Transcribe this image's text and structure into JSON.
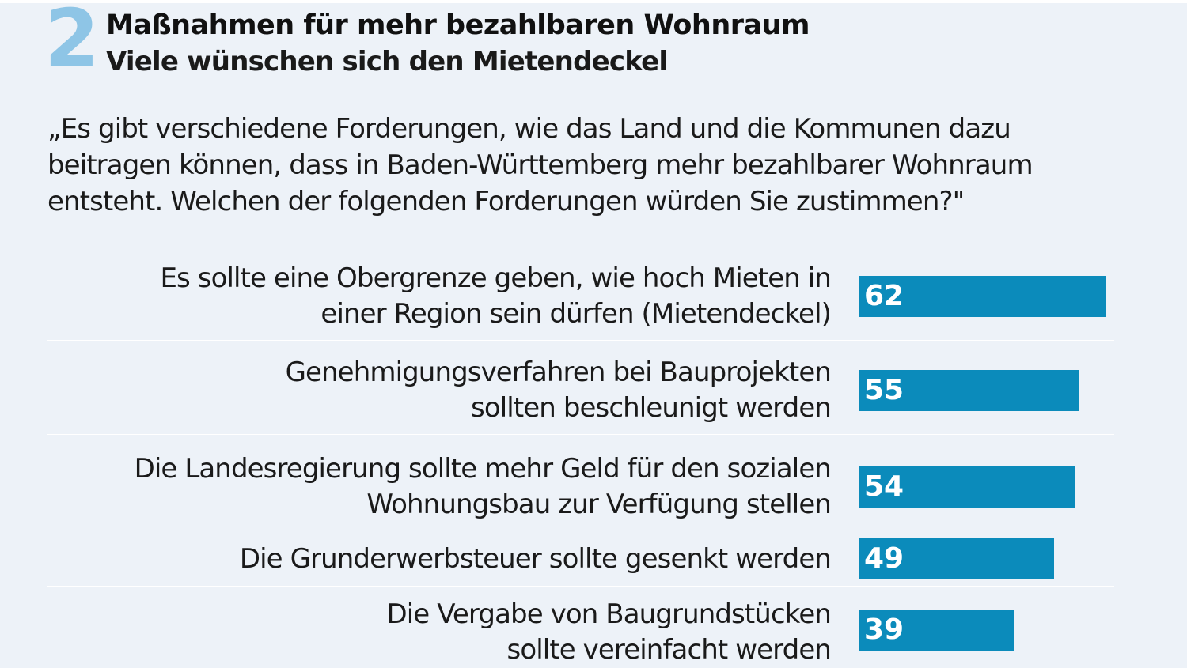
{
  "header": {
    "number": "2",
    "title": "Maßnahmen für mehr bezahlbaren Wohnraum",
    "subtitle": "Viele wünschen sich den Mietendeckel"
  },
  "question": "„Es gibt verschiedene Forderungen, wie das Land und die Kommunen dazu beitragen können, dass in Baden-Württemberg mehr bezahlbarer Wohnraum entsteht. Welchen der folgenden Forderungen würden Sie zustimmen?\"",
  "colors": {
    "bar": "#0b8bbb",
    "number": "#8ec5e6",
    "background": "#edf2f8"
  },
  "chart_data": {
    "type": "bar",
    "orientation": "horizontal",
    "title": "Maßnahmen für mehr bezahlbaren Wohnraum",
    "subtitle": "Viele wünschen sich den Mietendeckel",
    "categories": [
      "Es sollte eine Obergrenze geben, wie hoch Mieten in einer Region sein dürfen (Mietendeckel)",
      "Genehmigungsverfahren bei Bauprojekten sollten beschleunigt werden",
      "Die Landesregierung sollte mehr Geld für den sozialen Wohnungsbau zur Verfügung stellen",
      "Die Grunderwerbsteuer sollte gesenkt werden",
      "Die Vergabe von Baugrundstücken sollte vereinfacht werden"
    ],
    "label_lines": [
      [
        "Es sollte eine Obergrenze geben, wie hoch Mieten in",
        "einer Region sein dürfen (Mietendeckel)"
      ],
      [
        "Genehmigungsverfahren bei Bauprojekten",
        "sollten beschleunigt werden"
      ],
      [
        "Die Landesregierung sollte mehr Geld für den sozialen",
        "Wohnungsbau zur Verfügung stellen"
      ],
      [
        "Die Grunderwerbsteuer sollte gesenkt werden"
      ],
      [
        "Die Vergabe von Baugrundstücken",
        "sollte vereinfacht werden"
      ]
    ],
    "values": [
      62,
      55,
      54,
      49,
      39
    ],
    "xlim": [
      0,
      100
    ],
    "grid": false,
    "legend": "none"
  }
}
